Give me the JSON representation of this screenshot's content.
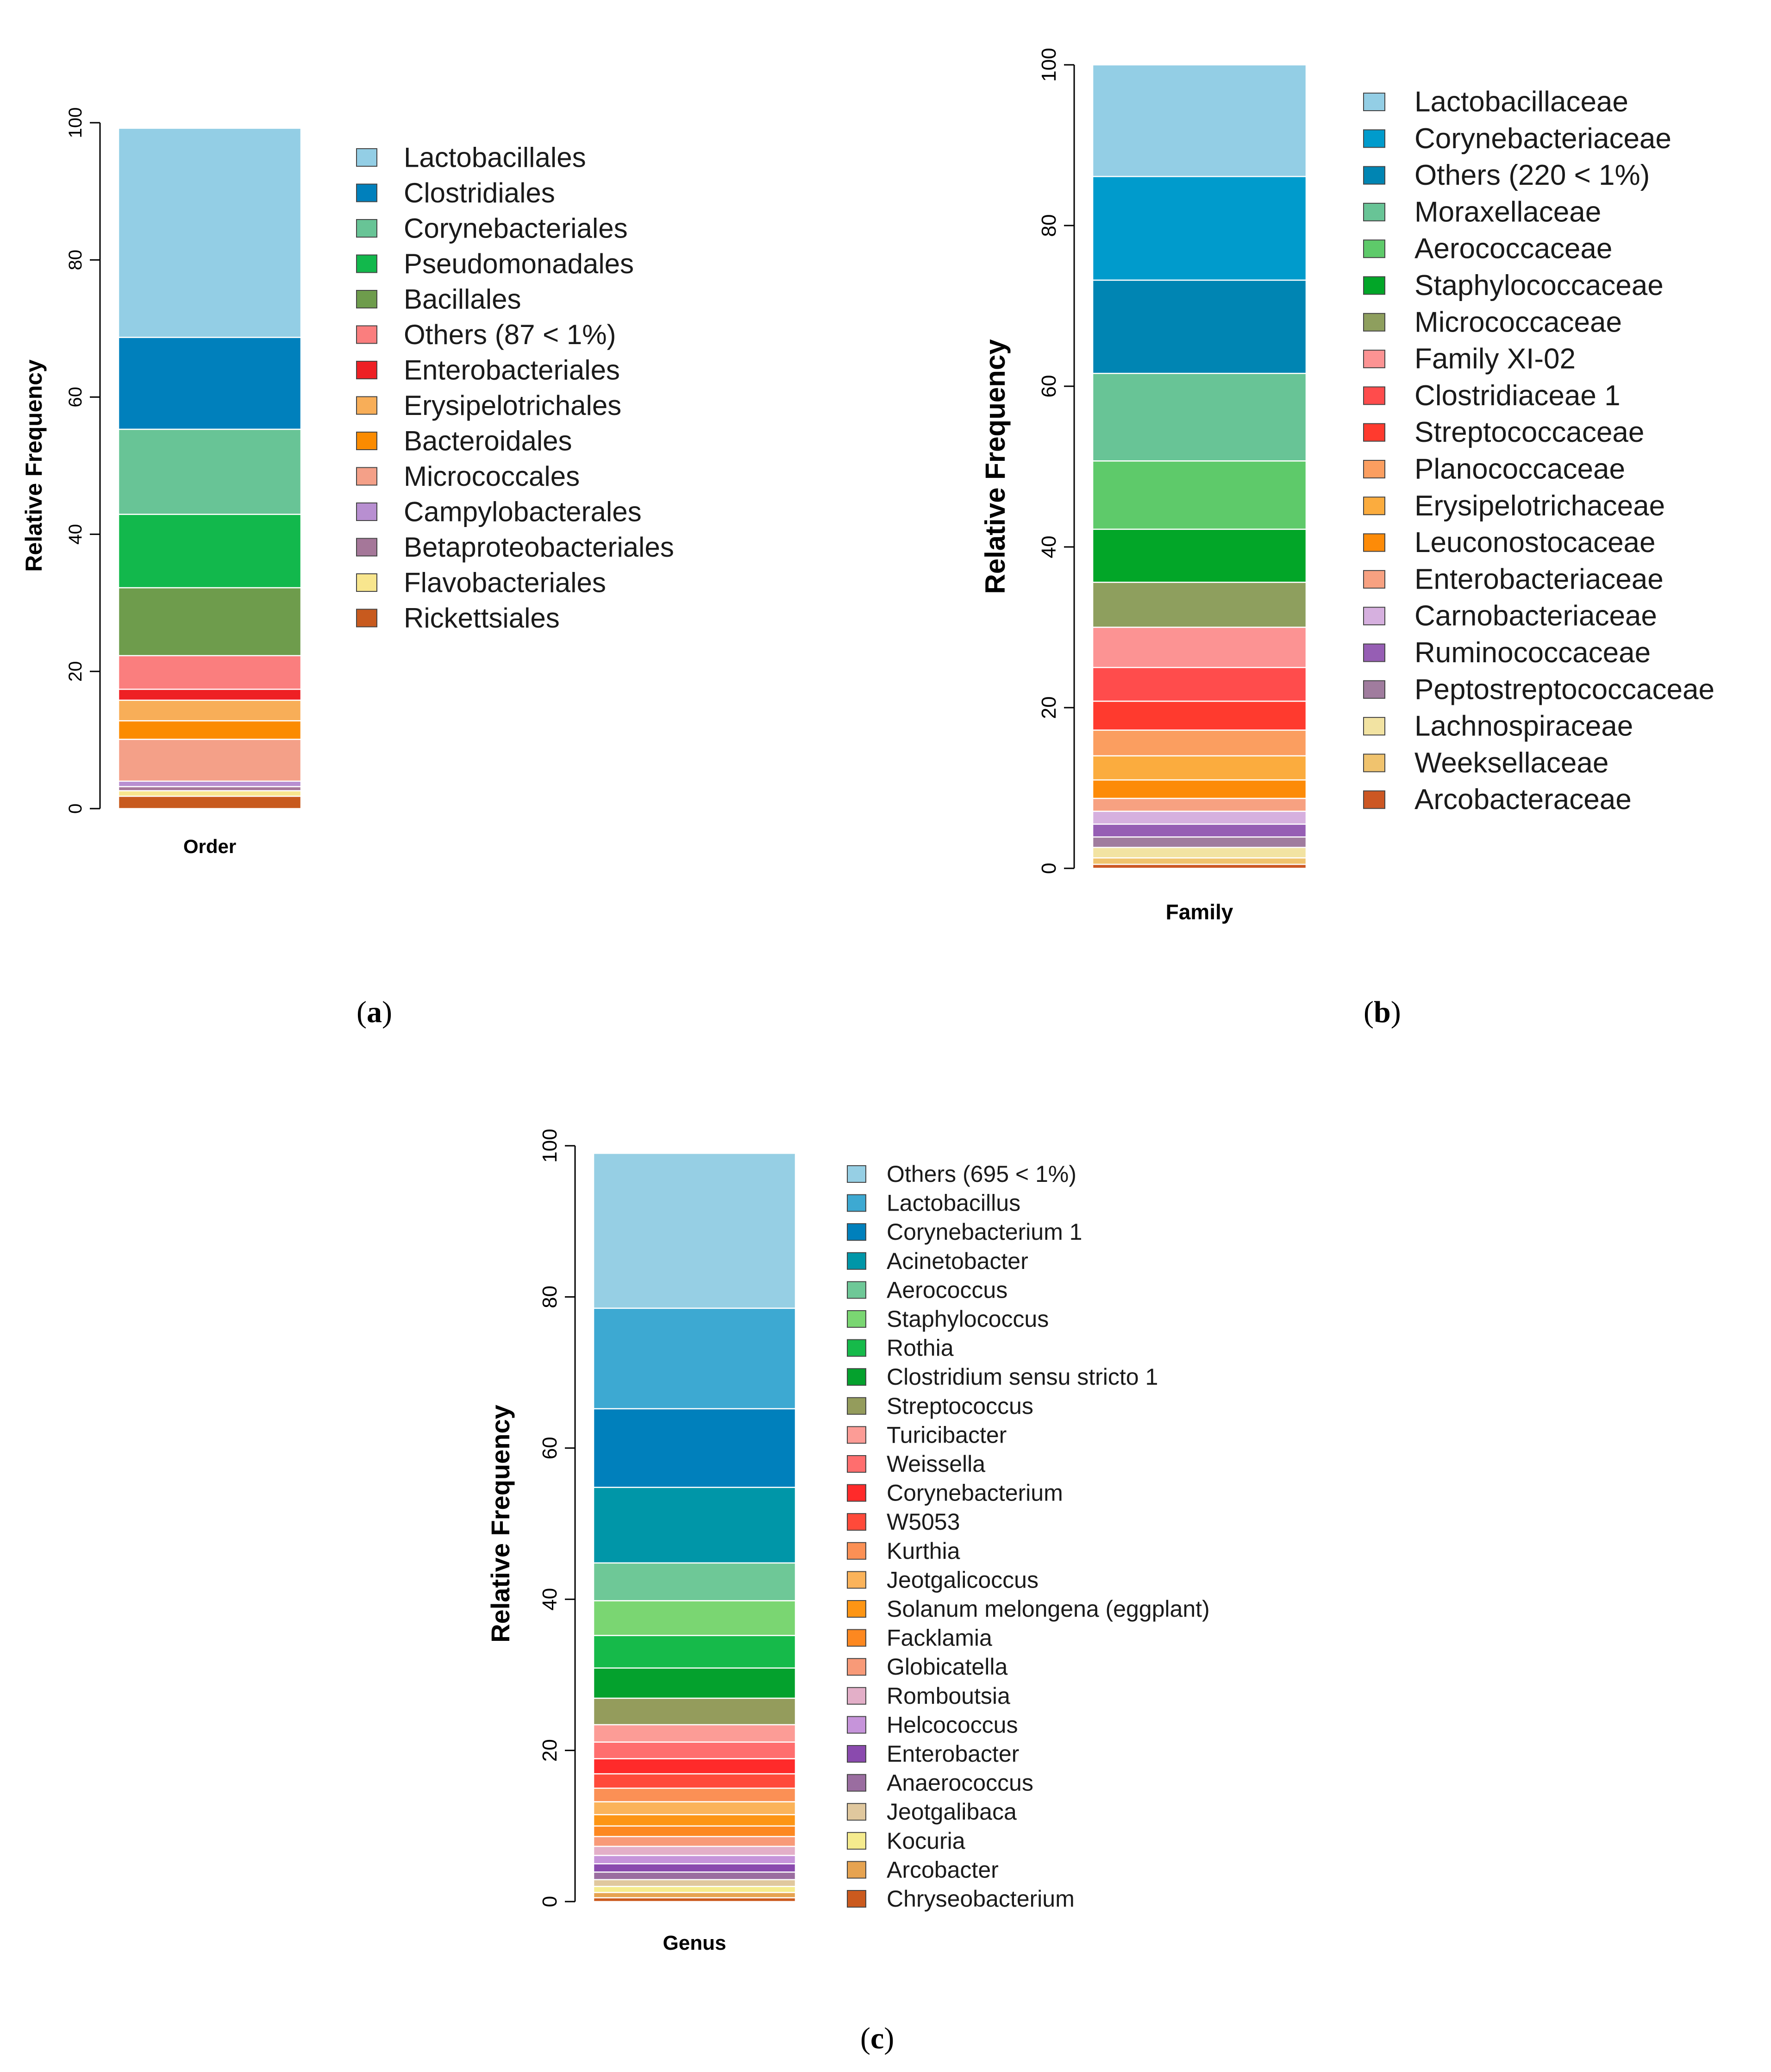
{
  "panel_captions": [
    {
      "open": "(",
      "letter": "a",
      "close": ")"
    },
    {
      "open": "(",
      "letter": "b",
      "close": ")"
    },
    {
      "open": "(",
      "letter": "c",
      "close": ")"
    }
  ],
  "chart_data": [
    {
      "type": "bar",
      "stacked": true,
      "ylabel": "Relative Frequency",
      "xlabel": "Order",
      "ylim": [
        0,
        100
      ],
      "yticks": [
        "0",
        "20",
        "40",
        "60",
        "80",
        "100"
      ],
      "legend_position": "right",
      "series": [
        {
          "name": "Lactobacillales",
          "value": 30.5,
          "color": "#93CEE5"
        },
        {
          "name": "Clostridiales",
          "value": 13.4,
          "color": "#0080BC"
        },
        {
          "name": "Corynebacteriales",
          "value": 12.4,
          "color": "#68C496"
        },
        {
          "name": "Pseudomonadales",
          "value": 10.7,
          "color": "#12B84C"
        },
        {
          "name": "Bacillales",
          "value": 9.9,
          "color": "#6E9C4C"
        },
        {
          "name": "Others (87 < 1%)",
          "value": 4.9,
          "color": "#FA7E7E"
        },
        {
          "name": "Enterobacteriales",
          "value": 1.6,
          "color": "#EE2024"
        },
        {
          "name": "Erysipelotrichales",
          "value": 3.0,
          "color": "#F8AE58"
        },
        {
          "name": "Bacteroidales",
          "value": 2.7,
          "color": "#FB8B00"
        },
        {
          "name": "Micrococcales",
          "value": 6.1,
          "color": "#F4A088"
        },
        {
          "name": "Campylobacterales",
          "value": 0.8,
          "color": "#B88FD1"
        },
        {
          "name": "Betaproteobacteriales",
          "value": 0.6,
          "color": "#A57799"
        },
        {
          "name": "Flavobacteriales",
          "value": 0.8,
          "color": "#F8E68E"
        },
        {
          "name": "Rickettsiales",
          "value": 1.8,
          "color": "#C85A1E"
        }
      ]
    },
    {
      "type": "bar",
      "stacked": true,
      "ylabel": "Relative Frequency",
      "xlabel": "Family",
      "ylim": [
        0,
        100
      ],
      "yticks": [
        "0",
        "20",
        "40",
        "60",
        "80",
        "100"
      ],
      "legend_position": "right",
      "series": [
        {
          "name": "Lactobacillaceae",
          "value": 13.9,
          "color": "#93CEE5"
        },
        {
          "name": "Corynebacteriaceae",
          "value": 12.9,
          "color": "#009BCC"
        },
        {
          "name": "Others (220 < 1%)",
          "value": 11.6,
          "color": "#0085B3"
        },
        {
          "name": "Moraxellaceae",
          "value": 10.9,
          "color": "#68C496"
        },
        {
          "name": "Aerococcaceae",
          "value": 8.5,
          "color": "#5ECA6A"
        },
        {
          "name": "Staphylococcaceae",
          "value": 6.6,
          "color": "#02A628"
        },
        {
          "name": "Micrococcaceae",
          "value": 5.6,
          "color": "#8E9F5E"
        },
        {
          "name": "Family XI-02",
          "value": 5.0,
          "color": "#FC9393"
        },
        {
          "name": "Clostridiaceae 1",
          "value": 4.2,
          "color": "#FF4C4C"
        },
        {
          "name": "Streptococcaceae",
          "value": 3.6,
          "color": "#FF3A2E"
        },
        {
          "name": "Planococcaceae",
          "value": 3.2,
          "color": "#FB9E60"
        },
        {
          "name": "Erysipelotrichaceae",
          "value": 3.0,
          "color": "#FBAC3E"
        },
        {
          "name": "Leuconostocaceae",
          "value": 2.3,
          "color": "#FD8B08"
        },
        {
          "name": "Enterobacteriaceae",
          "value": 1.6,
          "color": "#F7A181"
        },
        {
          "name": "Carnobacteriaceae",
          "value": 1.6,
          "color": "#D6B0DF"
        },
        {
          "name": "Ruminococcaceae",
          "value": 1.6,
          "color": "#965EB4"
        },
        {
          "name": "Peptostreptococcaceae",
          "value": 1.3,
          "color": "#A07C9E"
        },
        {
          "name": "Lachnospiraceae",
          "value": 1.3,
          "color": "#F2E3A2"
        },
        {
          "name": "Weeksellaceae",
          "value": 0.8,
          "color": "#F0C36E"
        },
        {
          "name": "Arcobacteraceae",
          "value": 0.5,
          "color": "#CC5723"
        }
      ]
    },
    {
      "type": "bar",
      "stacked": true,
      "ylabel": "Relative Frequency",
      "xlabel": "Genus",
      "ylim": [
        0,
        100
      ],
      "yticks": [
        "0",
        "20",
        "40",
        "60",
        "80",
        "100"
      ],
      "legend_position": "right",
      "series": [
        {
          "name": "Others (695 < 1%)",
          "value": 20.5,
          "color": "#96CFE4"
        },
        {
          "name": "Lactobacillus",
          "value": 13.3,
          "color": "#3DA9D2"
        },
        {
          "name": "Corynebacterium 1",
          "value": 10.4,
          "color": "#0080BC"
        },
        {
          "name": "Acinetobacter",
          "value": 10.0,
          "color": "#0096A8"
        },
        {
          "name": "Aerococcus",
          "value": 5.0,
          "color": "#6EC897"
        },
        {
          "name": "Staphylococcus",
          "value": 4.6,
          "color": "#7AD672"
        },
        {
          "name": "Rothia",
          "value": 4.3,
          "color": "#16BA4A"
        },
        {
          "name": "Clostridium sensu stricto 1",
          "value": 4.0,
          "color": "#04A12D"
        },
        {
          "name": "Streptococcus",
          "value": 3.5,
          "color": "#949C5C"
        },
        {
          "name": "Turicibacter",
          "value": 2.3,
          "color": "#FC9C96"
        },
        {
          "name": "Weissella",
          "value": 2.2,
          "color": "#FF6E6E"
        },
        {
          "name": "Corynebacterium",
          "value": 2.0,
          "color": "#FF2A2A"
        },
        {
          "name": "W5053",
          "value": 1.9,
          "color": "#FF4A3A"
        },
        {
          "name": "Kurthia",
          "value": 1.8,
          "color": "#FB9055"
        },
        {
          "name": "Jeotgalicoccus",
          "value": 1.7,
          "color": "#FBB35A"
        },
        {
          "name": "Solanum melongena (eggplant)",
          "value": 1.5,
          "color": "#FD9514"
        },
        {
          "name": "Facklamia",
          "value": 1.4,
          "color": "#FD8820"
        },
        {
          "name": "Globicatella",
          "value": 1.3,
          "color": "#F89A78"
        },
        {
          "name": "Romboutsia",
          "value": 1.2,
          "color": "#E3AFC8"
        },
        {
          "name": "Helcococcus",
          "value": 1.1,
          "color": "#C694DA"
        },
        {
          "name": "Enterobacter",
          "value": 1.1,
          "color": "#8A4AAE"
        },
        {
          "name": "Anaerococcus",
          "value": 1.0,
          "color": "#9A6DA0"
        },
        {
          "name": "Jeotgalibaca",
          "value": 0.9,
          "color": "#E0C89E"
        },
        {
          "name": "Kocuria",
          "value": 0.8,
          "color": "#F5EB8E"
        },
        {
          "name": "Arcobacter",
          "value": 0.7,
          "color": "#E6A350"
        },
        {
          "name": "Chryseobacterium",
          "value": 0.5,
          "color": "#CB5A1E"
        }
      ]
    }
  ]
}
